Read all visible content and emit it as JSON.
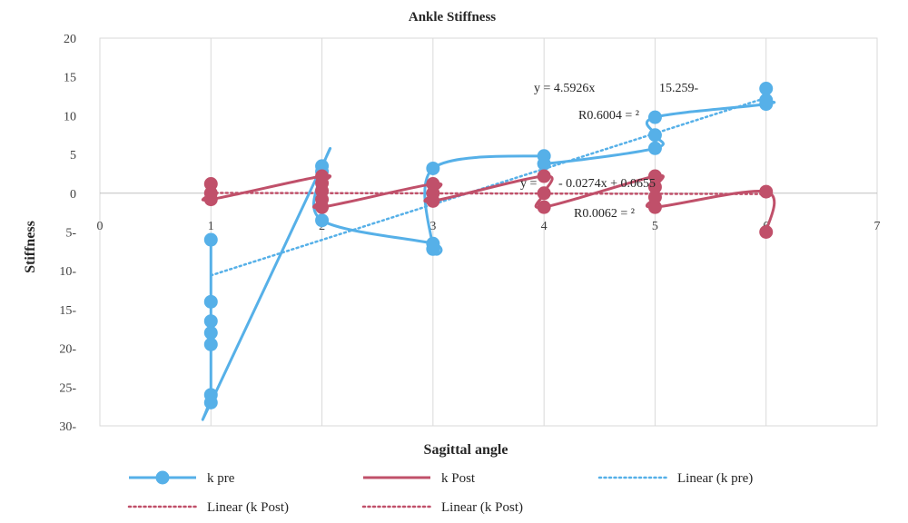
{
  "chart_data": {
    "type": "scatter",
    "title": "Ankle Stiffness",
    "xlabel": "Sagittal angle",
    "ylabel": "Stiffness",
    "xlim": [
      0,
      7
    ],
    "ylim": [
      -30,
      20
    ],
    "x_tick_labels": [
      "0",
      "1",
      "2",
      "3",
      "4",
      "5",
      "6",
      "7"
    ],
    "y_tick_labels": [
      "20",
      "15",
      "10",
      "5",
      "0",
      "5-",
      "10-",
      "15-",
      "20-",
      "25-",
      "30-"
    ],
    "grid": "vertical",
    "series": [
      {
        "name": "k pre",
        "color": "#56b0e8",
        "style": "smooth-line-markers",
        "points": [
          [
            1,
            -6.0
          ],
          [
            1,
            -14.0
          ],
          [
            1,
            -16.5
          ],
          [
            1,
            -18.0
          ],
          [
            1,
            -19.5
          ],
          [
            1,
            -26.0
          ],
          [
            1,
            -27.0
          ],
          [
            2,
            3.5
          ],
          [
            2,
            2.8
          ],
          [
            2,
            -3.5
          ],
          [
            3,
            -6.5
          ],
          [
            3,
            -7.2
          ],
          [
            3,
            3.2
          ],
          [
            4,
            4.8
          ],
          [
            4,
            3.8
          ],
          [
            5,
            5.8
          ],
          [
            5,
            7.5
          ],
          [
            5,
            9.8
          ],
          [
            6,
            11.5
          ],
          [
            6,
            12.0
          ],
          [
            6,
            13.5
          ]
        ]
      },
      {
        "name": "k Post",
        "color": "#c0506a",
        "style": "smooth-line-markers",
        "points": [
          [
            1,
            1.2
          ],
          [
            1,
            0.0
          ],
          [
            1,
            -0.8
          ],
          [
            2,
            2.2
          ],
          [
            2,
            1.3
          ],
          [
            2,
            0.3
          ],
          [
            2,
            -0.8
          ],
          [
            2,
            -1.8
          ],
          [
            3,
            1.2
          ],
          [
            3,
            0.0
          ],
          [
            3,
            -1.0
          ],
          [
            4,
            2.2
          ],
          [
            4,
            0.0
          ],
          [
            4,
            -1.8
          ],
          [
            5,
            2.2
          ],
          [
            5,
            0.8
          ],
          [
            5,
            -0.5
          ],
          [
            5,
            -1.8
          ],
          [
            6,
            0.2
          ],
          [
            6,
            -5.0
          ]
        ]
      }
    ],
    "trendlines": [
      {
        "name": "Linear (k pre)",
        "color": "#56b0e8",
        "x": [
          1,
          6
        ],
        "y": [
          -10.6,
          12.3
        ]
      },
      {
        "name": "Linear (k Post)",
        "color": "#c0506a",
        "x": [
          1,
          6
        ],
        "y": [
          0.04,
          -0.1
        ]
      }
    ],
    "annotations": [
      {
        "text": "y = 4.5926x",
        "color": "#262626"
      },
      {
        "text": "15.259-",
        "color": "#262626"
      },
      {
        "text": "R0.6004 = ²",
        "color": "#262626"
      },
      {
        "text": "y =",
        "color": "#262626"
      },
      {
        "text": "- 0.0274x + 0.0655",
        "color": "#262626"
      },
      {
        "text": "R0.0062 = ²",
        "color": "#262626"
      }
    ],
    "legend": {
      "placement": "bottom",
      "entries": [
        {
          "label": "k pre",
          "kind": "line-marker",
          "color": "#56b0e8"
        },
        {
          "label": "k Post",
          "kind": "line",
          "color": "#c0506a"
        },
        {
          "label": "Linear (k pre)",
          "kind": "dotted",
          "color": "#56b0e8"
        },
        {
          "label": "Linear (k Post)",
          "kind": "dotted",
          "color": "#c0506a"
        },
        {
          "label": "Linear (k Post)",
          "kind": "dotted",
          "color": "#c0506a"
        }
      ]
    }
  }
}
